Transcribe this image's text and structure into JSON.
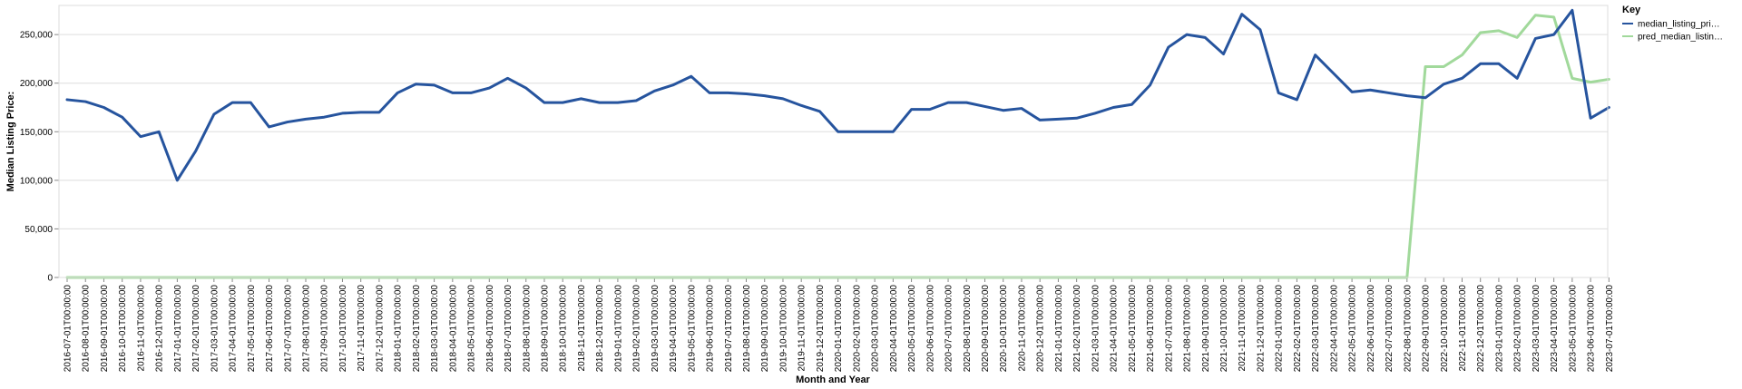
{
  "chart_data": {
    "type": "line",
    "title": "",
    "xlabel": "Month and Year",
    "ylabel": "Median Listing Price:",
    "ylim": [
      0,
      280000
    ],
    "yticks": [
      0,
      50000,
      100000,
      150000,
      200000,
      250000
    ],
    "ytick_labels": [
      "0",
      "50,000",
      "100,000",
      "150,000",
      "200,000",
      "250,000"
    ],
    "grid": true,
    "legend": {
      "title": "Key",
      "placement": "top-right"
    },
    "x": [
      "2016-07-01T00:00:00",
      "2016-08-01T00:00:00",
      "2016-09-01T00:00:00",
      "2016-10-01T00:00:00",
      "2016-11-01T00:00:00",
      "2016-12-01T00:00:00",
      "2017-01-01T00:00:00",
      "2017-02-01T00:00:00",
      "2017-03-01T00:00:00",
      "2017-04-01T00:00:00",
      "2017-05-01T00:00:00",
      "2017-06-01T00:00:00",
      "2017-07-01T00:00:00",
      "2017-08-01T00:00:00",
      "2017-09-01T00:00:00",
      "2017-10-01T00:00:00",
      "2017-11-01T00:00:00",
      "2017-12-01T00:00:00",
      "2018-01-01T00:00:00",
      "2018-02-01T00:00:00",
      "2018-03-01T00:00:00",
      "2018-04-01T00:00:00",
      "2018-05-01T00:00:00",
      "2018-06-01T00:00:00",
      "2018-07-01T00:00:00",
      "2018-08-01T00:00:00",
      "2018-09-01T00:00:00",
      "2018-10-01T00:00:00",
      "2018-11-01T00:00:00",
      "2018-12-01T00:00:00",
      "2019-01-01T00:00:00",
      "2019-02-01T00:00:00",
      "2019-03-01T00:00:00",
      "2019-04-01T00:00:00",
      "2019-05-01T00:00:00",
      "2019-06-01T00:00:00",
      "2019-07-01T00:00:00",
      "2019-08-01T00:00:00",
      "2019-09-01T00:00:00",
      "2019-10-01T00:00:00",
      "2019-11-01T00:00:00",
      "2019-12-01T00:00:00",
      "2020-01-01T00:00:00",
      "2020-02-01T00:00:00",
      "2020-03-01T00:00:00",
      "2020-04-01T00:00:00",
      "2020-05-01T00:00:00",
      "2020-06-01T00:00:00",
      "2020-07-01T00:00:00",
      "2020-08-01T00:00:00",
      "2020-09-01T00:00:00",
      "2020-10-01T00:00:00",
      "2020-11-01T00:00:00",
      "2020-12-01T00:00:00",
      "2021-01-01T00:00:00",
      "2021-02-01T00:00:00",
      "2021-03-01T00:00:00",
      "2021-04-01T00:00:00",
      "2021-05-01T00:00:00",
      "2021-06-01T00:00:00",
      "2021-07-01T00:00:00",
      "2021-08-01T00:00:00",
      "2021-09-01T00:00:00",
      "2021-10-01T00:00:00",
      "2021-11-01T00:00:00",
      "2021-12-01T00:00:00",
      "2022-01-01T00:00:00",
      "2022-02-01T00:00:00",
      "2022-03-01T00:00:00",
      "2022-04-01T00:00:00",
      "2022-05-01T00:00:00",
      "2022-06-01T00:00:00",
      "2022-07-01T00:00:00",
      "2022-08-01T00:00:00",
      "2022-09-01T00:00:00",
      "2022-10-01T00:00:00",
      "2022-11-01T00:00:00",
      "2022-12-01T00:00:00",
      "2023-01-01T00:00:00",
      "2023-02-01T00:00:00",
      "2023-03-01T00:00:00",
      "2023-04-01T00:00:00",
      "2023-05-01T00:00:00",
      "2023-06-01T00:00:00",
      "2023-07-01T00:00:00"
    ],
    "series": [
      {
        "name": "median_listing_pri…",
        "color": "#26549e",
        "values": [
          183000,
          181000,
          175000,
          165000,
          145000,
          150000,
          100000,
          130000,
          168000,
          180000,
          180000,
          155000,
          160000,
          163000,
          165000,
          169000,
          170000,
          170000,
          190000,
          199000,
          198000,
          190000,
          190000,
          195000,
          205000,
          195000,
          180000,
          180000,
          184000,
          180000,
          180000,
          182000,
          192000,
          198000,
          207000,
          190000,
          190000,
          189000,
          187000,
          184000,
          177000,
          171000,
          150000,
          150000,
          150000,
          150000,
          173000,
          173000,
          180000,
          180000,
          176000,
          172000,
          174000,
          162000,
          163000,
          164000,
          169000,
          175000,
          178000,
          198000,
          237000,
          250000,
          247000,
          230000,
          271000,
          255000,
          190000,
          183000,
          229000,
          210000,
          191000,
          193000,
          190000,
          187000,
          185000,
          199000,
          205000,
          220000,
          220000,
          205000,
          246000,
          250000,
          275000,
          164000,
          175000
        ]
      },
      {
        "name": "pred_median_listin…",
        "color": "#a1d99b",
        "values": [
          0,
          0,
          0,
          0,
          0,
          0,
          0,
          0,
          0,
          0,
          0,
          0,
          0,
          0,
          0,
          0,
          0,
          0,
          0,
          0,
          0,
          0,
          0,
          0,
          0,
          0,
          0,
          0,
          0,
          0,
          0,
          0,
          0,
          0,
          0,
          0,
          0,
          0,
          0,
          0,
          0,
          0,
          0,
          0,
          0,
          0,
          0,
          0,
          0,
          0,
          0,
          0,
          0,
          0,
          0,
          0,
          0,
          0,
          0,
          0,
          0,
          0,
          0,
          0,
          0,
          0,
          0,
          0,
          0,
          0,
          0,
          0,
          0,
          0,
          217000,
          217000,
          229000,
          252000,
          254000,
          247000,
          270000,
          268000,
          205000,
          201000,
          204000
        ]
      }
    ]
  }
}
